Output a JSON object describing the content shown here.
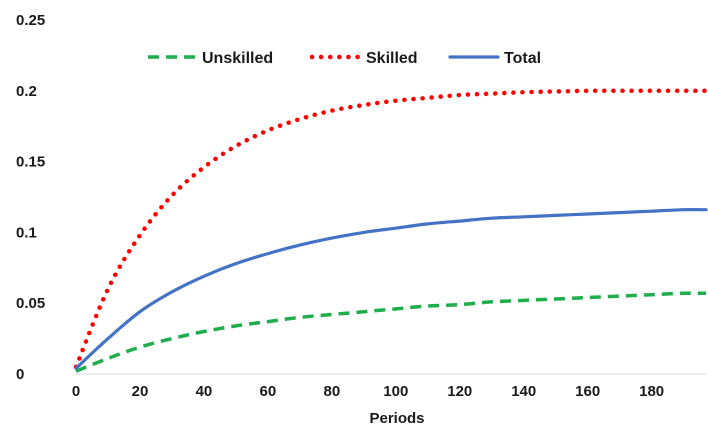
{
  "chart_data": {
    "type": "line",
    "title": "",
    "xlabel": "Periods",
    "ylabel": "",
    "xlim": [
      0,
      197
    ],
    "ylim": [
      0,
      0.25
    ],
    "grid": false,
    "legend_position": "top",
    "x_ticks": [
      0,
      20,
      40,
      60,
      80,
      100,
      120,
      140,
      160,
      180
    ],
    "x_tick_labels": [
      "0",
      "20",
      "40",
      "60",
      "80",
      "100",
      "120",
      "140",
      "160",
      "180"
    ],
    "y_ticks": [
      0,
      0.05,
      0.1,
      0.15,
      0.2,
      0.25
    ],
    "y_tick_labels": [
      "0",
      "0.05",
      "0.1",
      "0.15",
      "0.2",
      "0.25"
    ],
    "x": [
      0,
      10,
      20,
      30,
      40,
      50,
      60,
      70,
      80,
      90,
      100,
      110,
      120,
      130,
      140,
      150,
      160,
      170,
      180,
      190,
      197
    ],
    "series": [
      {
        "name": "Unskilled",
        "style": "dashed",
        "color": "#1fae4b",
        "values": [
          0.002,
          0.011,
          0.019,
          0.025,
          0.03,
          0.034,
          0.037,
          0.04,
          0.042,
          0.044,
          0.046,
          0.048,
          0.049,
          0.051,
          0.052,
          0.053,
          0.054,
          0.055,
          0.056,
          0.057,
          0.057
        ]
      },
      {
        "name": "Skilled",
        "style": "dotted",
        "color": "#ff0000",
        "values": [
          0.005,
          0.06,
          0.098,
          0.126,
          0.146,
          0.161,
          0.172,
          0.18,
          0.186,
          0.19,
          0.193,
          0.195,
          0.197,
          0.198,
          0.199,
          0.1995,
          0.2,
          0.2,
          0.2,
          0.2,
          0.2
        ]
      },
      {
        "name": "Total",
        "style": "solid",
        "color": "#4472c4",
        "values": [
          0.004,
          0.025,
          0.044,
          0.058,
          0.069,
          0.078,
          0.085,
          0.091,
          0.096,
          0.1,
          0.103,
          0.106,
          0.108,
          0.11,
          0.111,
          0.112,
          0.113,
          0.114,
          0.115,
          0.116,
          0.116
        ]
      }
    ]
  }
}
